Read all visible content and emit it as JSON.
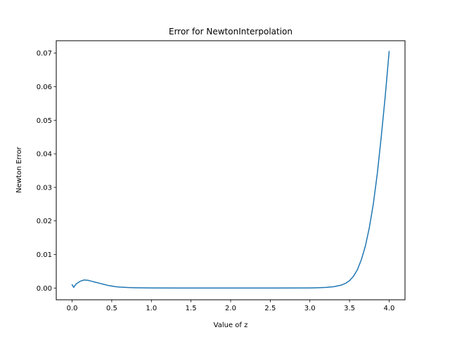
{
  "chart_data": {
    "type": "line",
    "title": "Error for NewtonInterpolation",
    "xlabel": "Value of z",
    "ylabel": "Newton Error",
    "xlim": [
      -0.2,
      4.2
    ],
    "ylim": [
      -0.0035,
      0.0737
    ],
    "grid": false,
    "xticks": [
      0.0,
      0.5,
      1.0,
      1.5,
      2.0,
      2.5,
      3.0,
      3.5,
      4.0
    ],
    "xtick_labels": [
      "0.0",
      "0.5",
      "1.0",
      "1.5",
      "2.0",
      "2.5",
      "3.0",
      "3.5",
      "4.0"
    ],
    "yticks": [
      0.0,
      0.01,
      0.02,
      0.03,
      0.04,
      0.05,
      0.06,
      0.07
    ],
    "ytick_labels": [
      "0.00",
      "0.01",
      "0.02",
      "0.03",
      "0.04",
      "0.05",
      "0.06",
      "0.07"
    ],
    "series": [
      {
        "color": "#1f77b4",
        "x": [
          0.0,
          0.02,
          0.05,
          0.1,
          0.15,
          0.2,
          0.25,
          0.3,
          0.35,
          0.4,
          0.45,
          0.5,
          0.55,
          0.6,
          0.7,
          0.8,
          1.0,
          1.5,
          2.0,
          2.5,
          3.0,
          3.1,
          3.2,
          3.3,
          3.4,
          3.45,
          3.5,
          3.55,
          3.6,
          3.65,
          3.7,
          3.75,
          3.8,
          3.85,
          3.9,
          3.95,
          4.0
        ],
        "y": [
          0.001,
          0.0002,
          0.0012,
          0.002,
          0.0024,
          0.0023,
          0.002,
          0.0017,
          0.0014,
          0.0011,
          0.0008,
          0.0006,
          0.0004,
          0.0003,
          0.00015,
          8e-05,
          3e-05,
          0.0,
          0.0,
          0.0,
          3e-05,
          8e-05,
          0.00018,
          0.0004,
          0.0009,
          0.0014,
          0.0022,
          0.0035,
          0.0055,
          0.0085,
          0.0125,
          0.018,
          0.025,
          0.034,
          0.045,
          0.057,
          0.0705
        ]
      }
    ]
  }
}
